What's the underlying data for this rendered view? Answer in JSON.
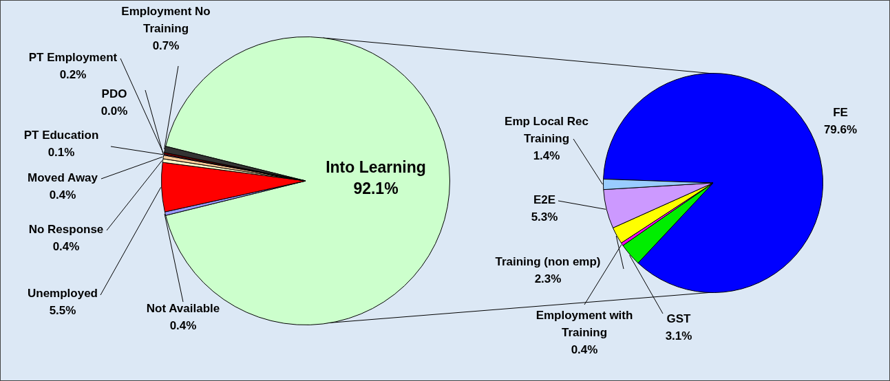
{
  "chart_data": [
    {
      "type": "pie",
      "categories": [
        "Into Learning",
        "Not Available",
        "Unemployed",
        "No Response",
        "Moved Away",
        "PT Education",
        "PDO",
        "PT Employment",
        "Employment No Training"
      ],
      "values": [
        92.1,
        0.4,
        5.5,
        0.4,
        0.4,
        0.1,
        0.0,
        0.2,
        0.7
      ],
      "colors": [
        "#ccffcc",
        "#9999ff",
        "#ff0000",
        "#ffffcc",
        "#ffcc99",
        "#cc99ff",
        "#ff00ff",
        "#800000",
        "#333333"
      ],
      "value_labels": [
        "92.1%",
        "0.4%",
        "5.5%",
        "0.4%",
        "0.4%",
        "0.1%",
        "0.0%",
        "0.2%",
        "0.7%"
      ]
    },
    {
      "type": "pie",
      "categories": [
        "FE",
        "GST",
        "Employment with Training",
        "Training (non emp)",
        "E2E",
        "Emp Local Rec Training"
      ],
      "values": [
        79.6,
        3.1,
        0.4,
        2.3,
        5.3,
        1.4
      ],
      "colors": [
        "#0000ff",
        "#00ee00",
        "#ff00ff",
        "#ffff00",
        "#cc99ff",
        "#99ccff"
      ],
      "value_labels": [
        "79.6%",
        "3.1%",
        "0.4%",
        "2.3%",
        "5.3%",
        "1.4%"
      ]
    }
  ]
}
